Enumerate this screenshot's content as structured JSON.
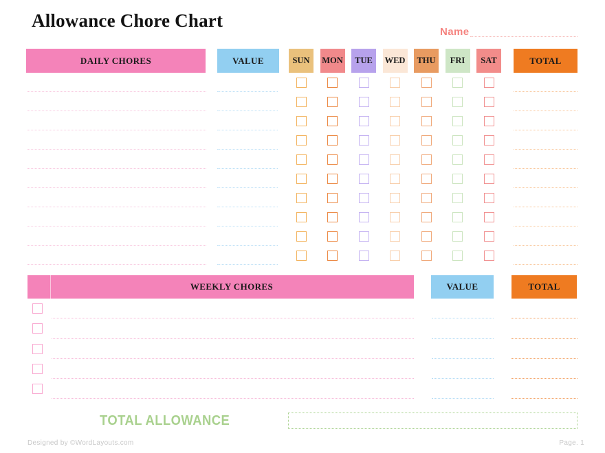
{
  "title": "Allowance Chore Chart",
  "name": {
    "label": "Name"
  },
  "daily": {
    "chores_header": "DAILY CHORES",
    "value_header": "VALUE",
    "total_header": "TOTAL",
    "row_count": 10,
    "days": [
      {
        "label": "SUN",
        "header_bg": "#EAC17C",
        "checkbox_color": "#F3B45F"
      },
      {
        "label": "MON",
        "header_bg": "#F1898B",
        "checkbox_color": "#EC8A45"
      },
      {
        "label": "TUE",
        "header_bg": "#B7A2EC",
        "checkbox_color": "#C5B3F2"
      },
      {
        "label": "WED",
        "header_bg": "#FBE7D7",
        "checkbox_color": "#F8CFAB"
      },
      {
        "label": "THU",
        "header_bg": "#E89B61",
        "checkbox_color": "#F0A97A"
      },
      {
        "label": "FRI",
        "header_bg": "#CEE6C6",
        "checkbox_color": "#CCE5C0"
      },
      {
        "label": "SAT",
        "header_bg": "#F28C8A",
        "checkbox_color": "#F19292"
      }
    ]
  },
  "weekly": {
    "chores_header": "WEEKLY CHORES",
    "value_header": "VALUE",
    "total_header": "TOTAL",
    "row_count": 5
  },
  "total_allowance": {
    "label": "TOTAL ALLOWANCE"
  },
  "footer": {
    "left": "Designed by ©WordLayouts.com",
    "right": "Page. 1"
  },
  "colors": {
    "pink_header": "#F483B9",
    "blue_header": "#92CFF1",
    "orange_header": "#EF7B21",
    "green_accent": "#A9D18E",
    "name_coral": "#F5827E",
    "daily_chore_line": "#F8C9E0",
    "daily_value_line": "#BDE0F6",
    "daily_total_line": "#F9C79B",
    "weekly_checkbox": "#F9A9D1",
    "weekly_chore_line": "#F7BCDA",
    "weekly_value_line": "#B5DCF5",
    "weekly_total_line": "#F3A569"
  }
}
